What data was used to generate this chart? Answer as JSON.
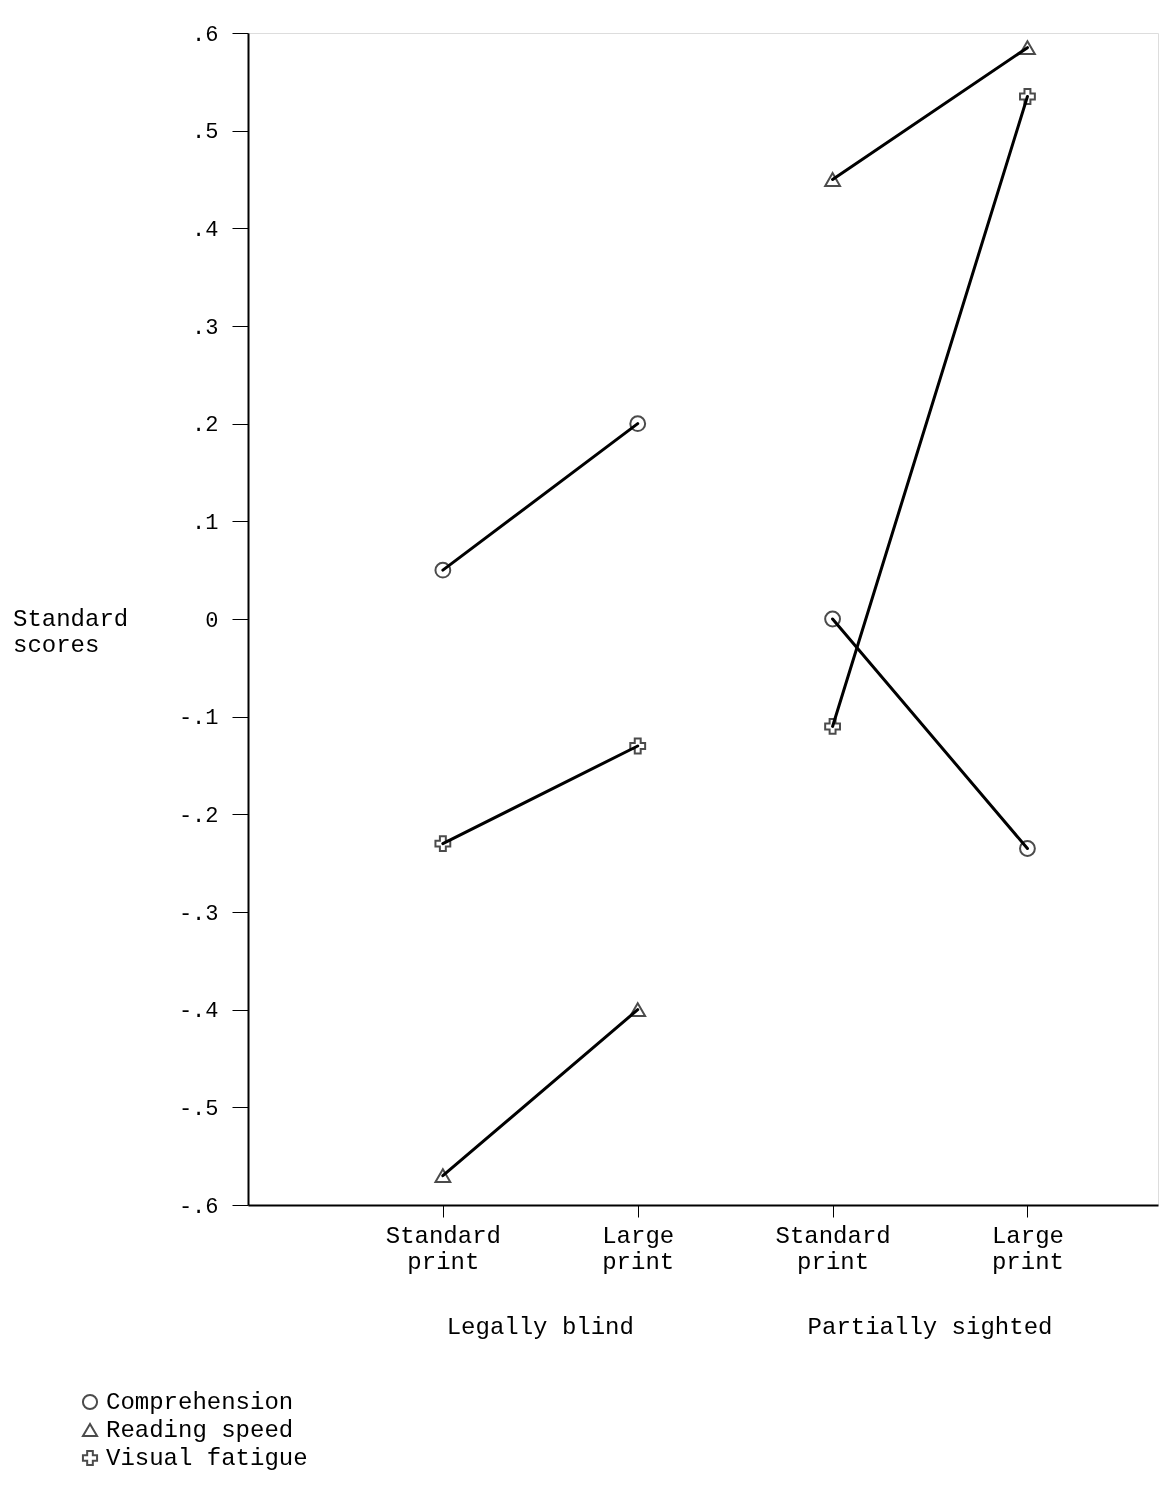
{
  "chart_data": {
    "type": "line",
    "ylabel": "Standard scores",
    "categories": [
      "Standard print",
      "Large print",
      "Standard print",
      "Large print"
    ],
    "ylim": [
      -0.6,
      0.6
    ],
    "yticks": [
      {
        "value": -0.6,
        "label": "-.6"
      },
      {
        "value": -0.5,
        "label": "-.5"
      },
      {
        "value": -0.4,
        "label": "-.4"
      },
      {
        "value": -0.3,
        "label": "-.3"
      },
      {
        "value": -0.2,
        "label": "-.2"
      },
      {
        "value": -0.1,
        "label": "-.1"
      },
      0,
      {
        "value": 0.1,
        "label": ".1"
      },
      {
        "value": 0.2,
        "label": ".2"
      },
      {
        "value": 0.3,
        "label": ".3"
      },
      {
        "value": 0.4,
        "label": ".4"
      },
      {
        "value": 0.5,
        "label": ".5"
      },
      {
        "value": 0.6,
        "label": ".6"
      }
    ],
    "grid": false,
    "legend": "bottom left",
    "series": [
      {
        "name": "Comprehension",
        "color": "#000000",
        "marker": "circle",
        "values": [
          0.05,
          0.2,
          null,
          null
        ]
      },
      {
        "name": "Reading speed",
        "color": "#000000",
        "marker": "triangle",
        "values": [
          -0.57,
          -0.4,
          null,
          null
        ]
      },
      {
        "name": "Visual fatigue",
        "color": "#000000",
        "marker": "cross",
        "values": [
          -0.23,
          -0.13,
          null,
          null
        ]
      },
      {
        "color": "#000000",
        "marker": "circle",
        "values": [
          null,
          null,
          0.0,
          -0.235
        ]
      },
      {
        "color": "#000000",
        "marker": "triangle",
        "values": [
          null,
          null,
          0.45,
          0.585
        ]
      },
      {
        "color": "#000000",
        "marker": "cross",
        "values": [
          null,
          null,
          -0.11,
          0.535
        ]
      }
    ],
    "annotations": [
      "Legally blind",
      "Partially sighted"
    ]
  }
}
